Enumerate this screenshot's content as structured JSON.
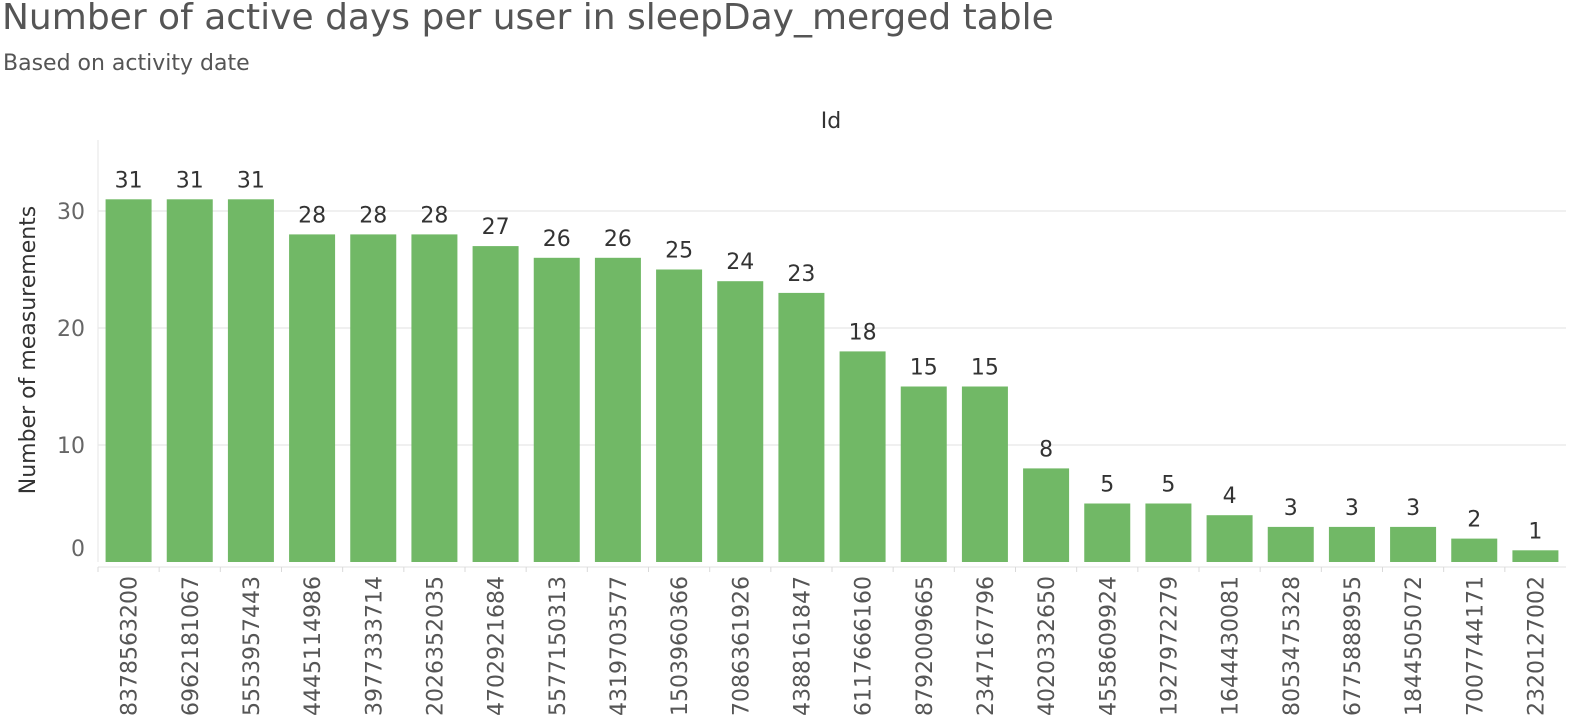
{
  "chart_data": {
    "type": "bar",
    "title": "Number of active days per user in sleepDay_merged table",
    "subtitle": "Based on activity date",
    "column_header": "Id",
    "ylabel": "Number of measurements",
    "ylim": [
      0,
      36
    ],
    "yticks": [
      0,
      10,
      20,
      30
    ],
    "grid": true,
    "bar_color": "#71b866",
    "categories": [
      "8378563200",
      "6962181067",
      "5553957443",
      "4445114986",
      "3977333714",
      "2026352035",
      "4702921684",
      "5577150313",
      "4319703577",
      "1503960366",
      "7086361926",
      "4388161847",
      "6117666160",
      "8792009665",
      "2347167796",
      "4020332650",
      "4558609924",
      "1927972279",
      "1644430081",
      "8053475328",
      "6775888955",
      "1844505072",
      "7007744171",
      "2320127002"
    ],
    "values": [
      31,
      31,
      31,
      28,
      28,
      28,
      27,
      26,
      26,
      25,
      24,
      23,
      18,
      15,
      15,
      8,
      5,
      5,
      4,
      3,
      3,
      3,
      2,
      1
    ]
  }
}
